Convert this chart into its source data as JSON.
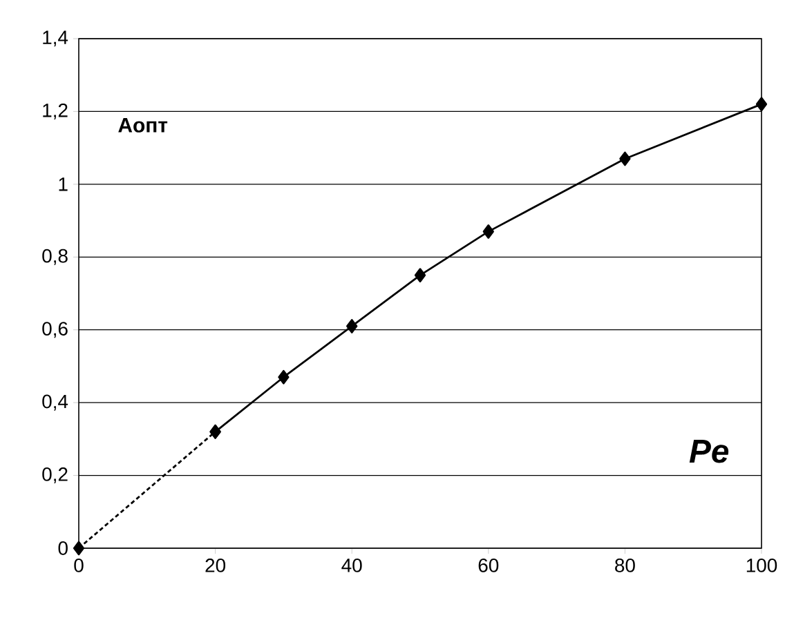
{
  "chart_data": {
    "type": "line",
    "xlabel": "Pe",
    "ylabel": "Аопт",
    "xlim": [
      0,
      100
    ],
    "ylim": [
      0,
      1.4
    ],
    "xticks": [
      0,
      20,
      40,
      60,
      80,
      100
    ],
    "yticks": [
      0,
      {
        "value": 0.2,
        "label": "0,2"
      },
      {
        "value": 0.4,
        "label": "0,4"
      },
      {
        "value": 0.6,
        "label": "0,6"
      },
      {
        "value": 0.8,
        "label": "0,8"
      },
      1,
      {
        "value": 1.2,
        "label": "1,2"
      },
      {
        "value": 1.4,
        "label": "1,4"
      }
    ],
    "grid": "y",
    "marker": "diamond",
    "series": [
      {
        "color": "#000000",
        "line_style": "dotted",
        "x": [
          0,
          20
        ],
        "values": [
          0,
          0.32
        ]
      },
      {
        "color": "#000000",
        "line_style": "solid",
        "x": [
          20,
          30,
          40,
          50,
          60,
          80,
          100
        ],
        "values": [
          0.32,
          0.47,
          0.61,
          0.75,
          0.87,
          1.07,
          1.22
        ]
      }
    ]
  }
}
